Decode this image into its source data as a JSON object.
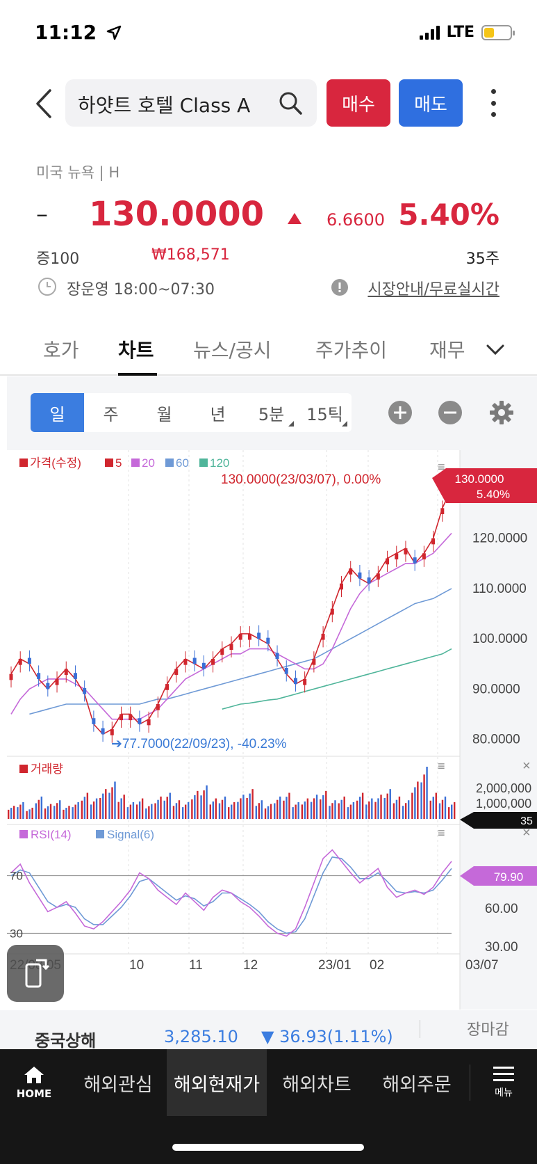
{
  "status": {
    "time": "11:12",
    "network": "LTE"
  },
  "header": {
    "search_text": "하얏트 호텔 Class A",
    "buy_label": "매수",
    "sell_label": "매도"
  },
  "quote": {
    "market": "미국 뉴욕 | H",
    "dash": "–",
    "price": "130.0000",
    "change": "6.6600",
    "change_pct": "5.40%",
    "margin": "증100",
    "krw_price": "₩168,571",
    "volume": "35주",
    "hours": "장운영 18:00~07:30",
    "market_info_link": "시장안내/무료실시간"
  },
  "tabs": [
    {
      "label": "호가"
    },
    {
      "label": "차트"
    },
    {
      "label": "뉴스/공시"
    },
    {
      "label": "주가추이"
    },
    {
      "label": "재무"
    }
  ],
  "periods": [
    {
      "label": "일"
    },
    {
      "label": "주"
    },
    {
      "label": "월"
    },
    {
      "label": "년"
    },
    {
      "label": "5분"
    },
    {
      "label": "15틱"
    }
  ],
  "chart_data": {
    "type": "candlestick",
    "legend": [
      {
        "label": "가격(수정)",
        "color": "#d0262e"
      },
      {
        "label": "5",
        "color": "#d0262e"
      },
      {
        "label": "20",
        "color": "#c569d9"
      },
      {
        "label": "60",
        "color": "#6f9ad6"
      },
      {
        "label": "120",
        "color": "#4fb59a"
      }
    ],
    "y_ticks": [
      "120.0000",
      "110.0000",
      "100.0000",
      "90.0000",
      "80.0000"
    ],
    "ylim": [
      78,
      132
    ],
    "current_label": {
      "price": "130.0000",
      "pct": "5.40%"
    },
    "high_annotation": "130.0000(23/03/07), 0.00%",
    "low_annotation": "77.7000(22/09/23), -40.23%",
    "ma5": [
      93,
      96,
      95,
      92,
      90,
      92,
      94,
      92,
      89,
      83,
      81,
      82,
      85,
      85,
      83,
      84,
      87,
      91,
      94,
      96,
      95,
      94,
      96,
      98,
      99,
      101,
      101,
      100,
      99,
      96,
      93,
      91,
      92,
      96,
      101,
      106,
      111,
      114,
      112,
      111,
      113,
      116,
      117,
      118,
      115,
      117,
      120,
      126,
      130
    ],
    "ma20": [
      85,
      88,
      90,
      91,
      92,
      92,
      92,
      91,
      90,
      88,
      86,
      84,
      84,
      84,
      84,
      85,
      86,
      88,
      90,
      92,
      93,
      94,
      95,
      96,
      97,
      97,
      98,
      98,
      98,
      97,
      96,
      95,
      94,
      94,
      95,
      98,
      102,
      106,
      109,
      111,
      112,
      113,
      114,
      115,
      115,
      116,
      117,
      119,
      121
    ],
    "ma60": [
      null,
      null,
      85,
      85.5,
      86,
      86.5,
      87,
      87,
      87,
      87,
      87,
      87,
      87,
      87,
      87,
      87.5,
      88,
      88,
      88.5,
      89,
      89.5,
      90,
      90.5,
      91,
      91.5,
      92,
      92.5,
      93,
      93.5,
      94,
      94.5,
      95,
      95.5,
      96,
      97,
      98,
      99,
      100,
      101,
      102,
      103,
      104,
      105,
      106,
      107,
      107.5,
      108,
      109,
      110
    ],
    "ma120": [
      null,
      null,
      null,
      null,
      null,
      null,
      null,
      null,
      null,
      null,
      null,
      null,
      null,
      null,
      null,
      null,
      null,
      null,
      null,
      null,
      null,
      null,
      null,
      86,
      86.5,
      87,
      87.2,
      87.5,
      87.8,
      88,
      88.5,
      89,
      89.5,
      90,
      90.5,
      91,
      91.5,
      92,
      92.5,
      93,
      93.5,
      94,
      94.5,
      95,
      95.5,
      96,
      96.5,
      97,
      98
    ],
    "volume_label": "거래량",
    "volume_ticks": [
      "2,000,000",
      "1,000,000"
    ],
    "volume_current": "35",
    "volume": [
      7,
      9,
      6,
      12,
      8,
      10,
      7,
      9,
      14,
      11,
      16,
      20,
      13,
      9,
      11,
      8,
      12,
      14,
      10,
      9,
      15,
      18,
      11,
      12,
      9,
      13,
      16,
      10,
      8,
      12,
      14,
      9,
      11,
      13,
      15,
      10,
      12,
      9,
      14,
      11,
      13,
      16,
      12,
      10,
      20,
      28,
      14,
      12,
      9
    ],
    "rsi_label": "RSI(14)",
    "signal_label": "Signal(6)",
    "rsi_ticks": [
      "60.00",
      "30.00"
    ],
    "rsi_current": "79.90",
    "rsi_lines": [
      70,
      30
    ],
    "rsi_line_labels": [
      "70",
      "30"
    ],
    "rsi": [
      72,
      78,
      65,
      55,
      45,
      48,
      52,
      44,
      35,
      33,
      38,
      45,
      52,
      60,
      72,
      68,
      60,
      55,
      50,
      58,
      52,
      46,
      55,
      60,
      58,
      52,
      48,
      42,
      35,
      30,
      28,
      33,
      48,
      65,
      82,
      88,
      80,
      72,
      65,
      70,
      75,
      62,
      55,
      58,
      60,
      57,
      62,
      72,
      80
    ],
    "signal": [
      70,
      74,
      72,
      62,
      52,
      48,
      50,
      48,
      40,
      36,
      36,
      42,
      48,
      56,
      66,
      68,
      63,
      58,
      53,
      56,
      54,
      49,
      52,
      58,
      58,
      54,
      50,
      45,
      38,
      33,
      30,
      31,
      40,
      56,
      72,
      83,
      82,
      76,
      68,
      68,
      72,
      66,
      59,
      58,
      59,
      58,
      60,
      67,
      75
    ],
    "x_labels": [
      "22/08/05",
      "10",
      "11",
      "12",
      "23/01",
      "02",
      "03/07"
    ]
  },
  "index_ticker": {
    "name": "중국상해",
    "value": "3,285.10",
    "change": "▼ 36.93(1.11%)",
    "status": "장마감"
  },
  "bottom_nav": {
    "home_label": "HOME",
    "items": [
      {
        "label": "해외관심"
      },
      {
        "label": "해외현재가"
      },
      {
        "label": "해외차트"
      },
      {
        "label": "해외주문"
      }
    ],
    "menu_label": "메뉴"
  }
}
